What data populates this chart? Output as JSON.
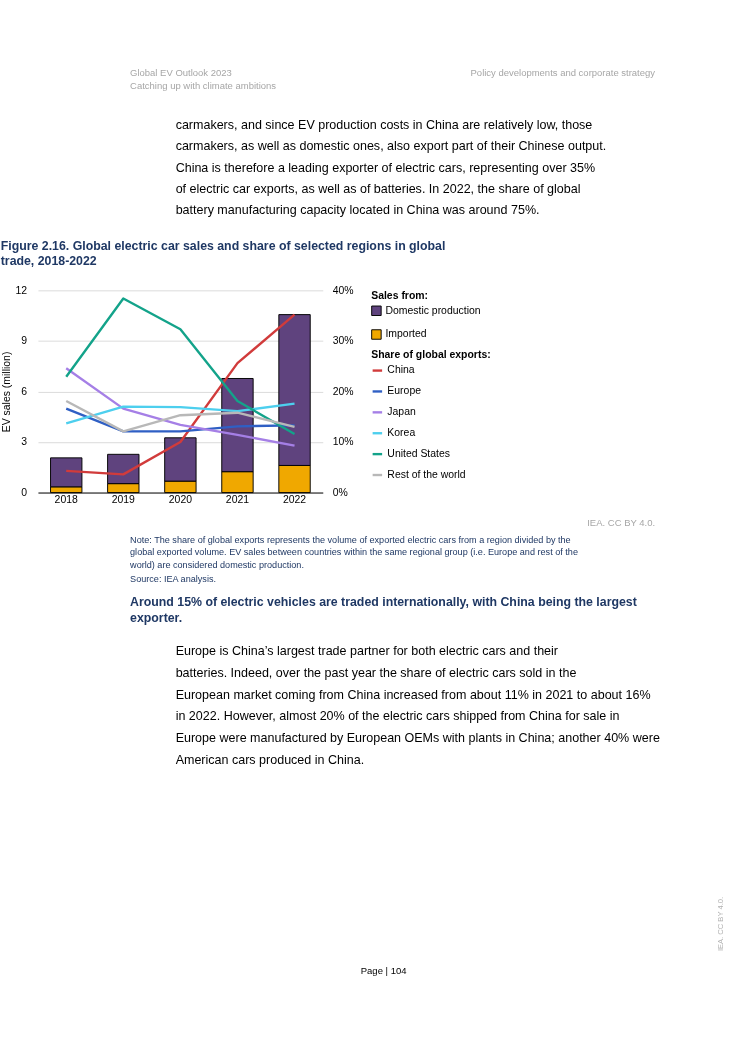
{
  "chart_data": {
    "type": "bar",
    "title": "Figure 2.16.  Global electric car sales and share of selected regions in global trade, 2018-2022",
    "ylabel": "EV sales (million)",
    "legend_title": "Sales from:",
    "categories": [
      "2018",
      "2019",
      "2020",
      "2021",
      "2022"
    ],
    "stacked": true,
    "grid": "y",
    "legend": "right",
    "ylim": [
      0,
      12
    ],
    "yticks": [
      0,
      3,
      6,
      9,
      12
    ],
    "y2lim": [
      0,
      40
    ],
    "y2ticks": [
      {
        "value": 0,
        "label": "0%"
      },
      {
        "value": 10,
        "label": "10%"
      },
      {
        "value": 20,
        "label": "20%"
      },
      {
        "value": 30,
        "label": "30%"
      },
      {
        "value": 40,
        "label": "40%"
      }
    ],
    "series": [
      {
        "name": "Imported",
        "color": "#f0a800",
        "values": [
          0.34,
          0.53,
          0.68,
          1.24,
          1.61
        ]
      },
      {
        "name": "Domestic production",
        "color": "#5f437e",
        "values": [
          1.72,
          1.74,
          2.57,
          5.53,
          8.95
        ]
      },
      {
        "name": "China",
        "type": "line",
        "axis": "y2",
        "color": "#d13b3b",
        "values": [
          4.3,
          3.6,
          10.0,
          25.6,
          35.2
        ]
      },
      {
        "name": "Europe",
        "type": "line",
        "axis": "y2",
        "color": "#2f5fc4",
        "values": [
          16.6,
          12.1,
          12.1,
          13.1,
          13.3
        ]
      },
      {
        "name": "Japan",
        "type": "line",
        "axis": "y2",
        "color": "#a57fe6",
        "values": [
          24.6,
          16.6,
          13.4,
          11.4,
          9.3
        ]
      },
      {
        "name": "Korea",
        "type": "line",
        "axis": "y2",
        "color": "#4dcfee",
        "values": [
          13.7,
          17.0,
          16.9,
          16.1,
          17.6
        ]
      },
      {
        "name": "United States",
        "type": "line",
        "axis": "y2",
        "color": "#13a38a",
        "values": [
          22.9,
          38.4,
          32.3,
          18.1,
          11.6
        ]
      },
      {
        "name": "Rest of the world",
        "type": "line",
        "axis": "y2",
        "color": "#b8b8b8",
        "values": [
          18.1,
          12.1,
          15.3,
          15.8,
          13.0
        ]
      }
    ],
    "annotations": [
      "Global EV Outlook 2023",
      "Catching up with climate ambitions",
      "Policy developments and corporate strategy",
      "carmakers, and since EV production costs in China are relatively low, those carmakers, as well as domestic ones, also export part of their Chinese output. China is therefore a leading exporter of electric cars, representing over 35% of electric car exports, as well as of batteries. In 2022, the share of global battery manufacturing capacity located in China was around 75%.",
      "Share of global exports:",
      "IEA. CC BY 4.0.",
      "Note: The share of global exports represents the volume of exported electric cars from a region divided by the global exported volume. EV sales between countries within the same regional group (i.e. Europe and rest of the world) are considered domestic production.",
      "Source: IEA analysis.",
      "Around 15% of electric vehicles are traded internationally, with China being the largest exporter.",
      "Europe is China’s largest trade partner for both electric cars and their batteries. Indeed, over the past year the share of electric cars sold in the European market coming from China increased from about 11% in 2021 to about 16% in 2022. However, almost 20% of the electric cars shipped from China for sale in Europe were manufactured by European OEMs with plants in China; another 40% were American cars produced in China.",
      "Page | 104",
      "IEA. CC BY 4.0."
    ]
  }
}
